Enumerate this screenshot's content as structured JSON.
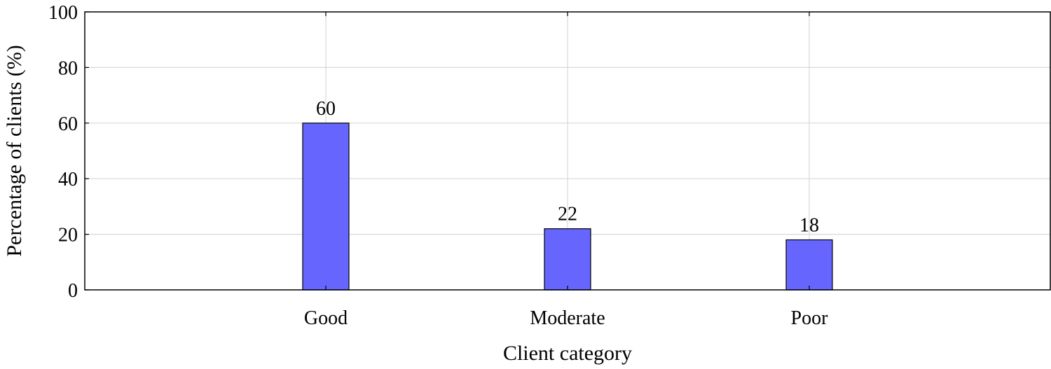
{
  "chart_data": {
    "type": "bar",
    "title": "",
    "xlabel": "Client category",
    "ylabel": "Percentage of clients (%)",
    "categories": [
      "Good",
      "Moderate",
      "Poor"
    ],
    "values": [
      60,
      22,
      18
    ],
    "data_labels": [
      "60",
      "22",
      "18"
    ],
    "ylim": [
      0,
      100
    ],
    "yticks": [
      0,
      20,
      40,
      60,
      80,
      100
    ],
    "ytick_labels": [
      "0",
      "20",
      "40",
      "60",
      "80",
      "100"
    ],
    "grid": true,
    "legend": "none",
    "bar_color": "#6666ff",
    "bar_edge_color": "#000000",
    "grid_color": "#d9d9d9"
  }
}
